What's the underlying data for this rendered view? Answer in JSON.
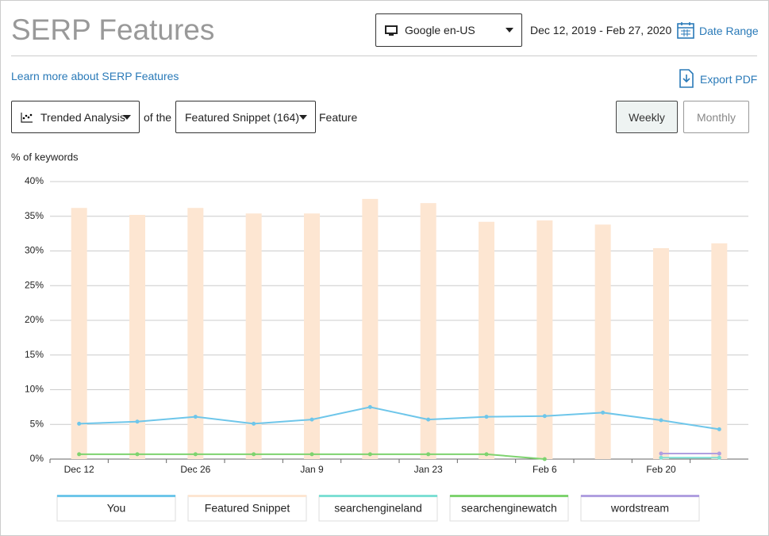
{
  "header": {
    "title": "SERP Features",
    "engine": "Google en-US",
    "dates": "Dec 12, 2019 - Feb 27, 2020",
    "date_range": "Date Range"
  },
  "links": {
    "learn_more": "Learn more about SERP Features",
    "export": "Export PDF"
  },
  "controls": {
    "analysis": "Trended Analysis",
    "of_the": "of the",
    "feature_select": "Featured Snippet (164)",
    "feature": "Feature",
    "weekly": "Weekly",
    "monthly": "Monthly"
  },
  "chart_data": {
    "type": "combo",
    "y_label": "% of keywords",
    "categories": [
      "Dec 12",
      null,
      "Dec 26",
      null,
      "Jan 9",
      null,
      "Jan 23",
      null,
      "Feb 6",
      null,
      "Feb 20",
      null
    ],
    "ylim": [
      0,
      40
    ],
    "yticks": [
      {
        "value": 0,
        "label": "0%"
      },
      {
        "value": 5,
        "label": "5%"
      },
      {
        "value": 10,
        "label": "10%"
      },
      {
        "value": 15,
        "label": "15%"
      },
      {
        "value": 20,
        "label": "20%"
      },
      {
        "value": 25,
        "label": "25%"
      },
      {
        "value": 30,
        "label": "30%"
      },
      {
        "value": 35,
        "label": "35%"
      },
      {
        "value": 40,
        "label": "40%"
      }
    ],
    "grid": true,
    "series": [
      {
        "name": "You",
        "type": "line",
        "color": "#6ec6ea",
        "values": [
          5.1,
          5.4,
          6.1,
          5.1,
          5.7,
          7.5,
          5.7,
          6.1,
          6.2,
          6.7,
          5.6,
          4.3
        ]
      },
      {
        "name": "Featured Snippet",
        "type": "bar",
        "color": "#fde6d2",
        "values": [
          36.2,
          35.2,
          36.2,
          35.4,
          35.4,
          37.5,
          36.9,
          34.2,
          34.4,
          33.8,
          30.4,
          31.1
        ]
      },
      {
        "name": "searchengineland",
        "type": "line",
        "color": "#7ddfd4",
        "values": [
          null,
          null,
          null,
          null,
          null,
          null,
          null,
          null,
          null,
          null,
          0.2,
          0.2
        ]
      },
      {
        "name": "searchenginewatch",
        "type": "line",
        "color": "#7ed36f",
        "values": [
          0.7,
          0.7,
          0.7,
          0.7,
          0.7,
          0.7,
          0.7,
          0.7,
          0,
          null,
          null,
          null
        ]
      },
      {
        "name": "wordstream",
        "type": "line",
        "color": "#b09fe0",
        "values": [
          null,
          null,
          null,
          null,
          null,
          null,
          null,
          null,
          null,
          null,
          0.8,
          0.8
        ]
      }
    ]
  }
}
